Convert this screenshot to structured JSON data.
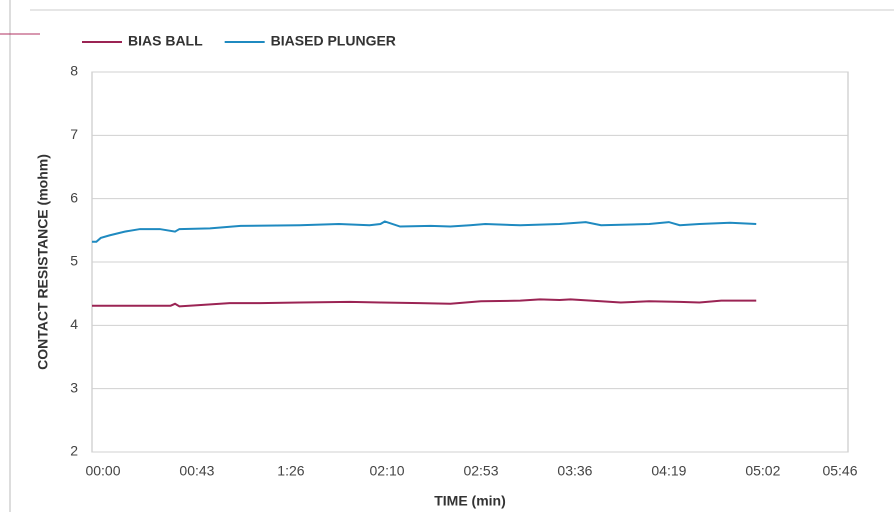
{
  "chart_data": {
    "type": "line",
    "xlabel": "TIME (min)",
    "ylabel": "CONTACT RESISTANCE (mohm)",
    "series": [
      {
        "name": "BIAS BALL",
        "color": "#9b2454",
        "x": [
          0,
          36,
          38,
          40,
          49,
          63,
          77,
          95,
          118,
          132,
          150,
          164,
          178,
          196,
          205,
          214,
          219,
          233,
          242,
          255,
          269,
          278,
          288,
          304
        ],
        "values": [
          4.31,
          4.31,
          4.34,
          4.3,
          4.32,
          4.35,
          4.35,
          4.36,
          4.37,
          4.36,
          4.35,
          4.34,
          4.38,
          4.39,
          4.41,
          4.4,
          4.41,
          4.38,
          4.36,
          4.38,
          4.37,
          4.36,
          4.39,
          4.39
        ]
      },
      {
        "name": "BIASED PLUNGER",
        "color": "#1f8ac0",
        "x": [
          0,
          2,
          4,
          8,
          15,
          22,
          31,
          38,
          40,
          54,
          68,
          95,
          113,
          127,
          132,
          134,
          141,
          155,
          164,
          173,
          180,
          196,
          214,
          226,
          233,
          255,
          264,
          269,
          278,
          292,
          304
        ],
        "values": [
          5.32,
          5.32,
          5.38,
          5.42,
          5.48,
          5.52,
          5.52,
          5.48,
          5.52,
          5.53,
          5.57,
          5.58,
          5.6,
          5.58,
          5.6,
          5.64,
          5.56,
          5.57,
          5.56,
          5.58,
          5.6,
          5.58,
          5.6,
          5.63,
          5.58,
          5.6,
          5.63,
          5.58,
          5.6,
          5.62,
          5.6
        ]
      }
    ],
    "xlim": [
      0,
      346
    ],
    "xticks": [
      {
        "value": 0,
        "label": "00:00"
      },
      {
        "value": 43,
        "label": "00:43"
      },
      {
        "value": 86,
        "label": "1:26"
      },
      {
        "value": 130,
        "label": "02:10"
      },
      {
        "value": 173,
        "label": "02:53"
      },
      {
        "value": 216,
        "label": "03:36"
      },
      {
        "value": 259,
        "label": "04:19"
      },
      {
        "value": 302,
        "label": "05:02"
      },
      {
        "value": 346,
        "label": "05:46"
      }
    ],
    "ylim": [
      2,
      8
    ],
    "yticks": [
      2,
      3,
      4,
      5,
      6,
      7,
      8
    ],
    "grid": true,
    "legend": "top"
  }
}
